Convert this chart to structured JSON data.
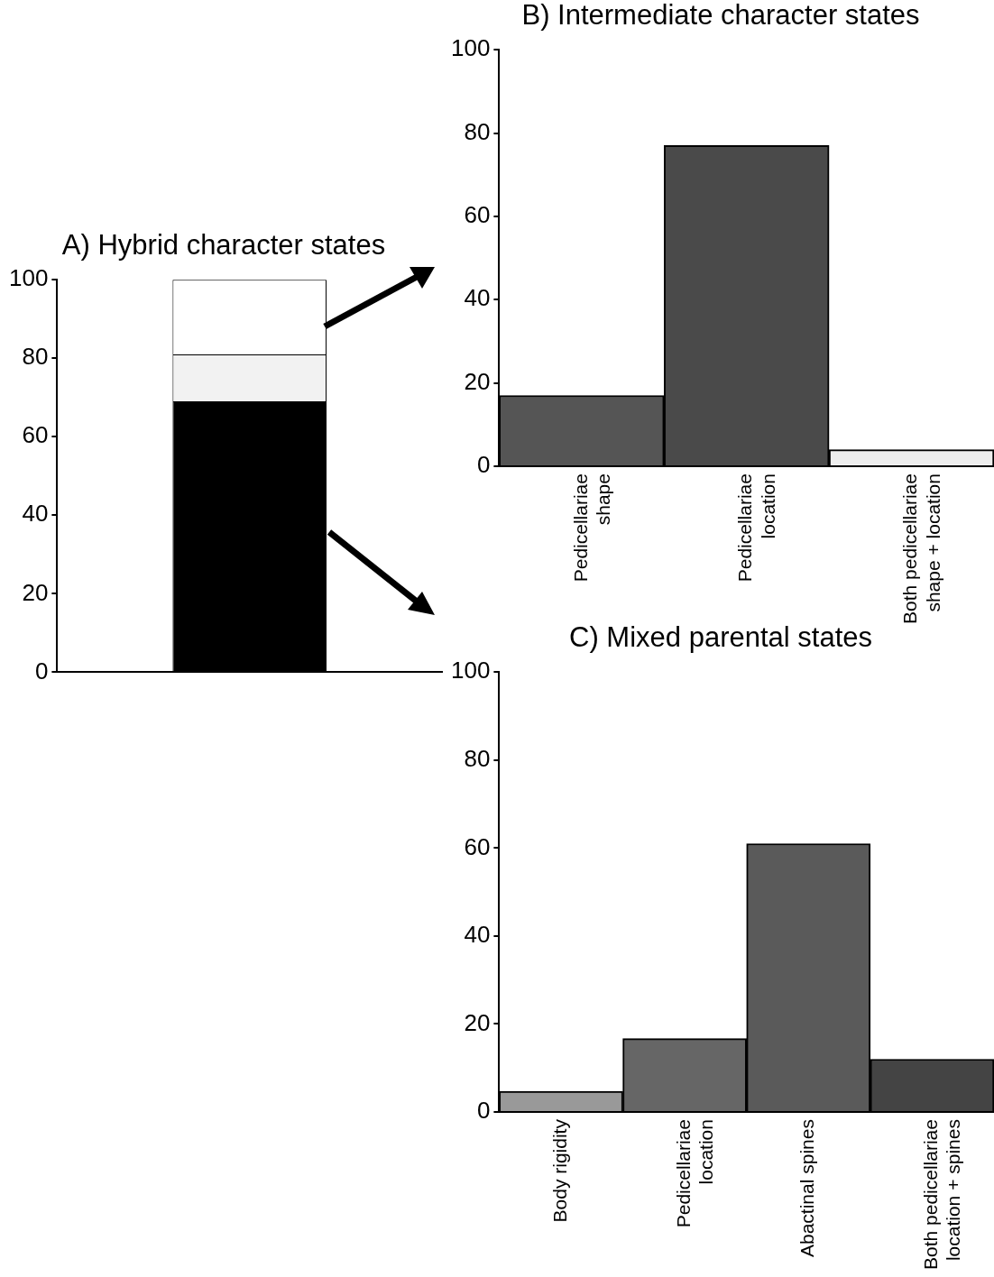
{
  "chart_data": [
    {
      "type": "bar",
      "title": "A) Hybrid character states",
      "categories": [
        null
      ],
      "stacked": true,
      "series": [
        {
          "color": "#000000",
          "values": [
            69
          ]
        },
        {
          "color": "#f2f2f2",
          "values": [
            12
          ]
        },
        {
          "color": "#ffffff",
          "values": [
            19
          ]
        }
      ],
      "ylim": [
        0,
        100
      ],
      "yticks": [
        0,
        20,
        40,
        60,
        80,
        100
      ]
    },
    {
      "type": "bar",
      "title": "B) Intermediate character states",
      "categories": [
        "Pedicellariae shape",
        "Pedicellariae location",
        "Both pedicellariae shape + location"
      ],
      "values": [
        17,
        77,
        4
      ],
      "colors": [
        "#555555",
        "#4a4a4a",
        "#eeeeee"
      ],
      "ylim": [
        0,
        100
      ],
      "yticks": [
        0,
        20,
        40,
        60,
        80,
        100
      ]
    },
    {
      "type": "bar",
      "title": "C) Mixed parental states",
      "categories": [
        "Body rigidity",
        "Pedicellariae location",
        "Abactinal spines",
        "Both pedicellariae location + spines"
      ],
      "values": [
        4.7,
        16.7,
        61,
        12
      ],
      "colors": [
        "#999999",
        "#666666",
        "#5a5a5a",
        "#444444"
      ],
      "ylim": [
        0,
        100
      ],
      "yticks": [
        0,
        20,
        40,
        60,
        80,
        100
      ]
    }
  ]
}
